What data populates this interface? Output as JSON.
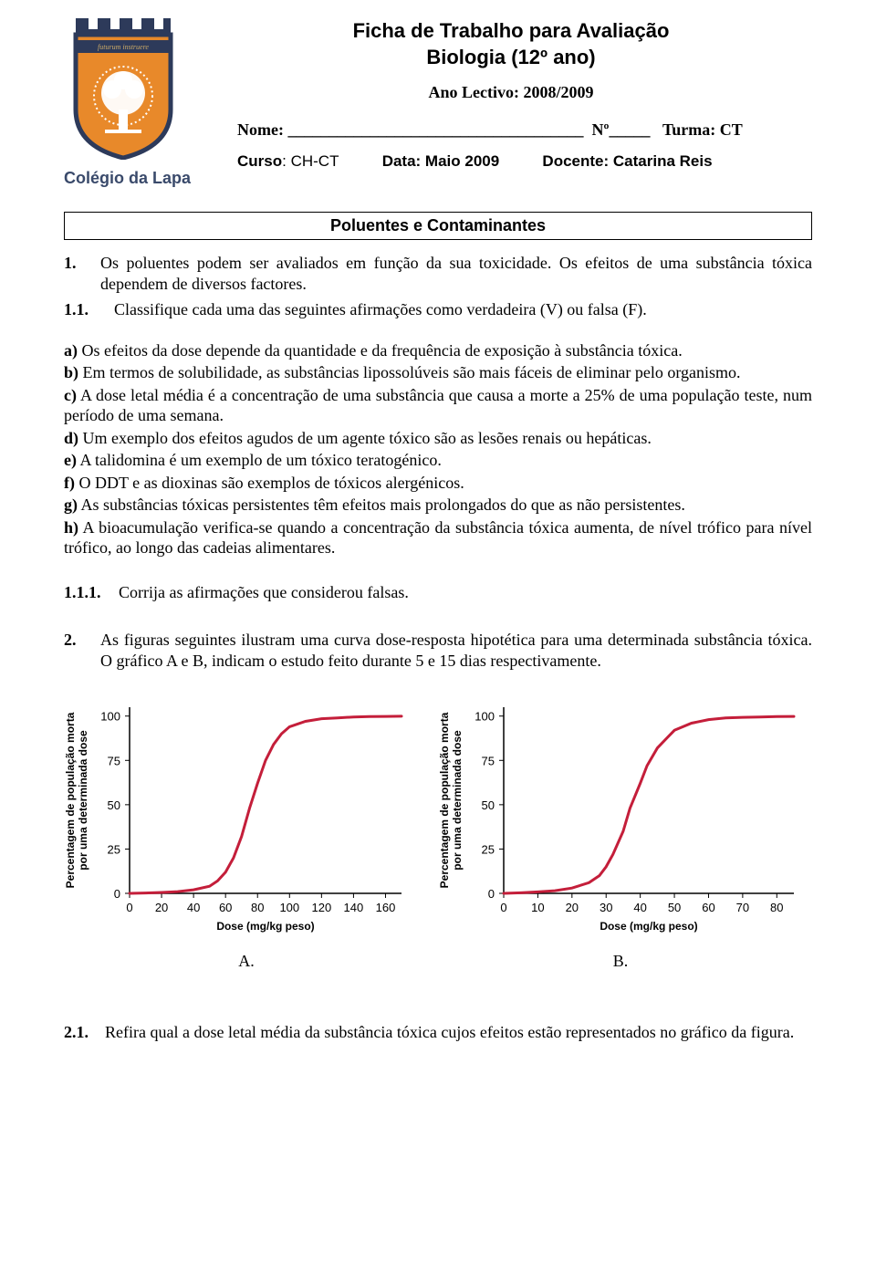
{
  "header": {
    "title_line1": "Ficha de Trabalho para Avaliação",
    "title_line2": "Biologia (12º ano)",
    "ano_lectivo": "Ano Lectivo: 2008/2009",
    "nome_label": "Nome:",
    "nome_blank": "____________________________________",
    "no_label": "Nº",
    "no_blank": "_____",
    "turma_label": "Turma: CT",
    "curso_label": "Curso",
    "curso_value": ": CH-CT",
    "data_label": "Data: Maio 2009",
    "docente_label": "Docente: Catarina Reis",
    "logo_text": "Colégio da Lapa",
    "logo_motto": "futurum instruere"
  },
  "section_title": "Poluentes e Contaminantes",
  "q1": {
    "num": "1.",
    "intro": "Os poluentes podem ser avaliados em função da sua toxicidade. Os efeitos de uma substância tóxica dependem de diversos factores.",
    "sub_num": "1.1.",
    "sub_text": "Classifique cada uma das seguintes afirmações como verdadeira (V) ou falsa (F).",
    "items": {
      "a_label": "a)",
      "a_text": " Os efeitos da dose depende da quantidade e da frequência de exposição à substância tóxica.",
      "b_label": "b)",
      "b_text": " Em termos de solubilidade, as substâncias lipossolúveis são mais fáceis de eliminar pelo organismo.",
      "c_label": "c)",
      "c_text": " A dose letal média é a concentração de uma substância que causa a morte a 25% de uma população teste, num período de uma semana.",
      "d_label": "d)",
      "d_text": " Um exemplo dos efeitos agudos de um agente tóxico são as lesões renais ou hepáticas.",
      "e_label": "e)",
      "e_text": " A talidomina é um exemplo de um tóxico teratogénico.",
      "f_label": "f)",
      "f_text": " O DDT e as dioxinas são exemplos de tóxicos alergénicos.",
      "g_label": "g)",
      "g_text": " As substâncias tóxicas persistentes têm efeitos mais prolongados do que as não persistentes.",
      "h_label": "h)",
      "h_text": " A bioacumulação verifica-se quando a concentração da substância tóxica aumenta, de nível trófico para nível trófico, ao longo das cadeias alimentares."
    },
    "sub2_num": "1.1.1.",
    "sub2_text": "Corrija as afirmações que considerou falsas."
  },
  "q2": {
    "num": "2.",
    "text": "As figuras seguintes ilustram uma curva dose-resposta hipotética para uma determinada substância tóxica. O gráfico A e B, indicam o estudo feito durante 5 e 15 dias respectivamente."
  },
  "chart_a": {
    "type": "line",
    "ylabel": "Percentagem de população morta\npor uma determinada dose",
    "xlabel": "Dose (mg/kg peso)",
    "xlim": [
      0,
      170
    ],
    "ylim": [
      0,
      105
    ],
    "xticks": [
      0,
      20,
      40,
      60,
      80,
      100,
      120,
      140,
      160
    ],
    "yticks": [
      0,
      25,
      50,
      75,
      100
    ],
    "line_color": "#c41e3a",
    "line_width": 3,
    "axis_color": "#000000",
    "background_color": "#ffffff",
    "tick_fontsize": 13,
    "label_fontsize": 12,
    "curve": [
      [
        0,
        0
      ],
      [
        10,
        0.2
      ],
      [
        20,
        0.5
      ],
      [
        30,
        1
      ],
      [
        40,
        2
      ],
      [
        50,
        4
      ],
      [
        55,
        7
      ],
      [
        60,
        12
      ],
      [
        65,
        20
      ],
      [
        70,
        32
      ],
      [
        75,
        48
      ],
      [
        80,
        62
      ],
      [
        85,
        75
      ],
      [
        90,
        84
      ],
      [
        95,
        90
      ],
      [
        100,
        94
      ],
      [
        110,
        97
      ],
      [
        120,
        98.5
      ],
      [
        130,
        99
      ],
      [
        140,
        99.5
      ],
      [
        150,
        99.7
      ],
      [
        160,
        99.8
      ],
      [
        170,
        99.9
      ]
    ]
  },
  "chart_b": {
    "type": "line",
    "ylabel": "Percentagem de população morta\npor uma determinada dose",
    "xlabel": "Dose (mg/kg peso)",
    "xlim": [
      0,
      85
    ],
    "ylim": [
      0,
      105
    ],
    "xticks": [
      0,
      10,
      20,
      30,
      40,
      50,
      60,
      70,
      80
    ],
    "yticks": [
      0,
      25,
      50,
      75,
      100
    ],
    "line_color": "#c41e3a",
    "line_width": 3,
    "axis_color": "#000000",
    "background_color": "#ffffff",
    "tick_fontsize": 13,
    "label_fontsize": 12,
    "curve": [
      [
        0,
        0
      ],
      [
        5,
        0.3
      ],
      [
        10,
        0.8
      ],
      [
        15,
        1.5
      ],
      [
        20,
        3
      ],
      [
        25,
        6
      ],
      [
        28,
        10
      ],
      [
        30,
        15
      ],
      [
        32,
        22
      ],
      [
        35,
        35
      ],
      [
        37,
        48
      ],
      [
        40,
        62
      ],
      [
        42,
        72
      ],
      [
        45,
        82
      ],
      [
        48,
        88
      ],
      [
        50,
        92
      ],
      [
        55,
        96
      ],
      [
        60,
        98
      ],
      [
        65,
        99
      ],
      [
        70,
        99.3
      ],
      [
        75,
        99.5
      ],
      [
        80,
        99.7
      ],
      [
        85,
        99.8
      ]
    ]
  },
  "chart_labels": {
    "a": "A.",
    "b": "B."
  },
  "q21": {
    "num": "2.1.",
    "text": "Refira qual a dose letal média da substância tóxica cujos efeitos estão representados no gráfico da figura."
  },
  "logo_colors": {
    "shield_bg": "#e8892a",
    "shield_border": "#2d3a5a",
    "tree": "#ffffff",
    "banner_bg": "#2d3a5a",
    "banner_text": "#c9a867"
  }
}
